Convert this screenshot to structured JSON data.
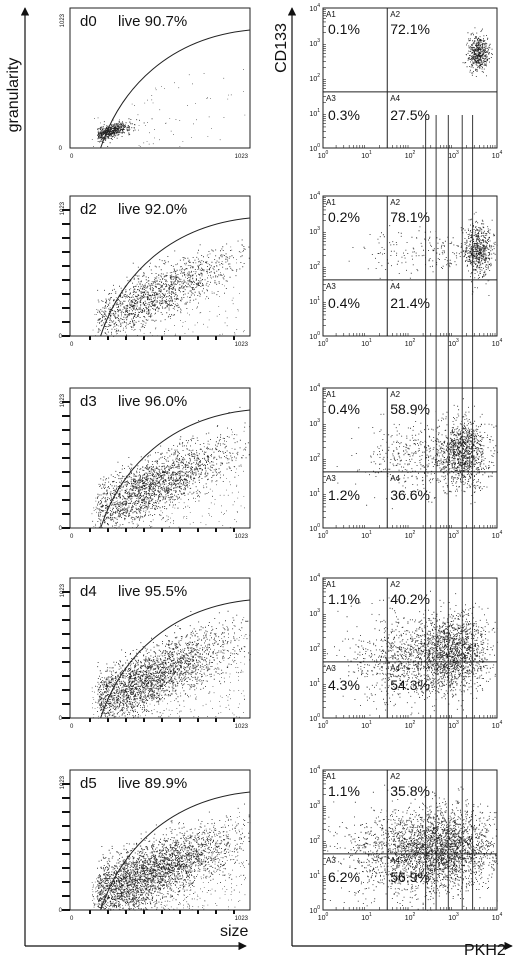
{
  "chart_data": [
    {
      "type": "scatter",
      "xlabel": "size",
      "ylabel": "granularity",
      "xlim": [
        0,
        1023
      ],
      "ylim": [
        0,
        1023
      ],
      "x_ticks": [
        "0",
        "1023"
      ],
      "y_ticks": [
        "0",
        "1023"
      ],
      "panels": [
        {
          "day": "d0",
          "live": "live 90.7%"
        },
        {
          "day": "d2",
          "live": "live 92.0%"
        },
        {
          "day": "d3",
          "live": "live 96.0%"
        },
        {
          "day": "d4",
          "live": "live 95.5%"
        },
        {
          "day": "d5",
          "live": "live 89.9%"
        }
      ]
    },
    {
      "type": "scatter",
      "xlabel": "PKH2",
      "ylabel": "CD133",
      "scale": "log",
      "xlim": [
        1,
        10000
      ],
      "ylim": [
        1,
        10000
      ],
      "quadrant_names": [
        "A1",
        "A2",
        "A3",
        "A4"
      ],
      "x_ticks": [
        [
          "10",
          "0"
        ],
        [
          "10",
          "1"
        ],
        [
          "10",
          "2"
        ],
        [
          "10",
          "3"
        ],
        [
          "10",
          "4"
        ]
      ],
      "y_ticks": [
        [
          "10",
          "0"
        ],
        [
          "10",
          "1"
        ],
        [
          "10",
          "2"
        ],
        [
          "10",
          "3"
        ],
        [
          "10",
          "4"
        ]
      ],
      "panels": [
        {
          "day": "d0",
          "A1": "0.1%",
          "A2": "72.1%",
          "A3": "0.3%",
          "A4": "27.5%"
        },
        {
          "day": "d2",
          "A1": "0.2%",
          "A2": "78.1%",
          "A3": "0.4%",
          "A4": "21.4%"
        },
        {
          "day": "d3",
          "A1": "0.4%",
          "A2": "58.9%",
          "A3": "1.2%",
          "A4": "36.6%"
        },
        {
          "day": "d4",
          "A1": "1.1%",
          "A2": "40.2%",
          "A3": "4.3%",
          "A4": "54.3%"
        },
        {
          "day": "d5",
          "A1": "1.1%",
          "A2": "35.8%",
          "A3": "6.2%",
          "A4": "56.9%"
        }
      ]
    }
  ]
}
